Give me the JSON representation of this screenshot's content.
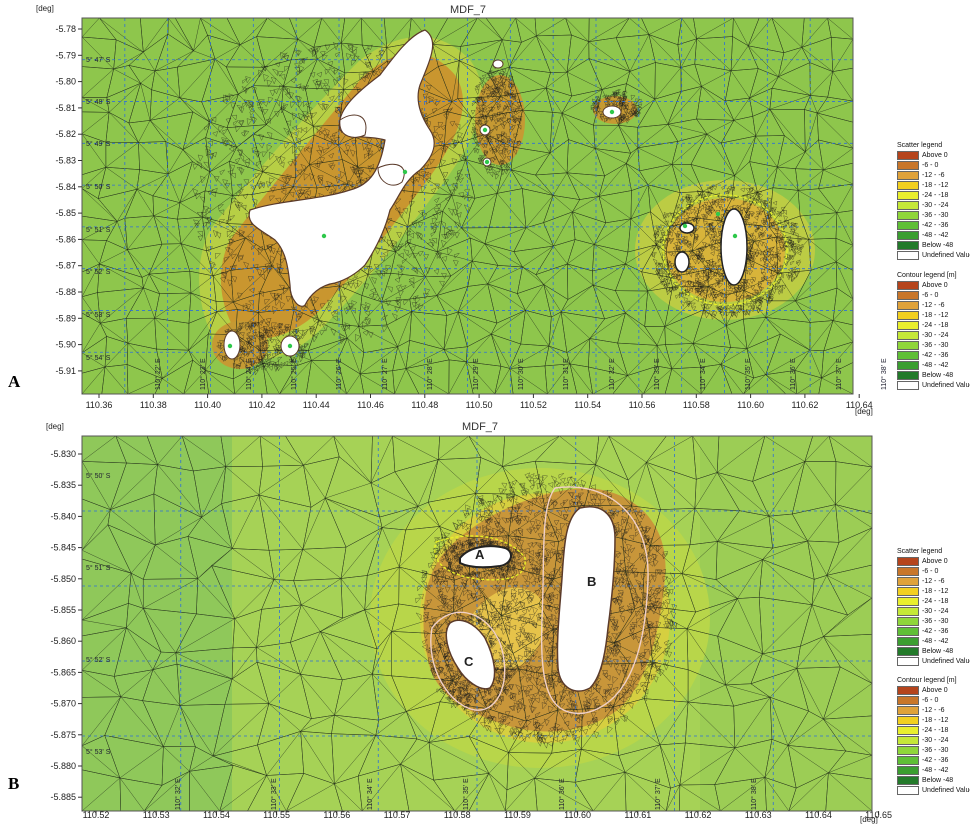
{
  "panels": [
    {
      "letter": "A",
      "title": "MDF_7",
      "y_unit": "[deg]",
      "x_unit": "[deg]",
      "x_ticks": [
        "110.36",
        "110.38",
        "110.40",
        "110.42",
        "110.44",
        "110.46",
        "110.48",
        "110.50",
        "110.52",
        "110.54",
        "110.56",
        "110.58",
        "110.60",
        "110.62",
        "110.64"
      ],
      "y_ticks": [
        "-5.78",
        "-5.79",
        "-5.80",
        "-5.81",
        "-5.82",
        "-5.83",
        "-5.84",
        "-5.85",
        "-5.86",
        "-5.87",
        "-5.88",
        "-5.89",
        "-5.90",
        "-5.91"
      ],
      "lat_labels": [
        "5° 47' S",
        "5° 48' S",
        "5° 49' S",
        "5° 50' S",
        "5° 51' S",
        "5° 52' S",
        "5° 53' S",
        "5° 54' S"
      ],
      "lon_labels": [
        "110° 22' E",
        "110° 23' E",
        "110° 24' E",
        "110° 25' E",
        "110° 26' E",
        "110° 27' E",
        "110° 28' E",
        "110° 29' E",
        "110° 30' E",
        "110° 31' E",
        "110° 32' E",
        "110° 33' E",
        "110° 34' E",
        "110° 35' E",
        "110° 36' E",
        "110° 37' E",
        "110° 38' E"
      ]
    },
    {
      "letter": "B",
      "title": "MDF_7",
      "y_unit": "[deg]",
      "x_unit": "[deg]",
      "x_ticks": [
        "110.52",
        "110.53",
        "110.54",
        "110.55",
        "110.56",
        "110.57",
        "110.58",
        "110.59",
        "110.60",
        "110.61",
        "110.62",
        "110.63",
        "110.64",
        "110.65"
      ],
      "y_ticks": [
        "-5.830",
        "-5.835",
        "-5.840",
        "-5.845",
        "-5.850",
        "-5.855",
        "-5.860",
        "-5.865",
        "-5.870",
        "-5.875",
        "-5.880",
        "-5.885"
      ],
      "lat_labels": [
        "5° 50' S",
        "5° 51' S",
        "5° 52' S",
        "5° 53' S"
      ],
      "lon_labels": [
        "110° 32' E",
        "110° 33' E",
        "110° 34' E",
        "110° 35' E",
        "110° 36' E",
        "110° 37' E",
        "110° 38' E"
      ],
      "island_labels": [
        "A",
        "B",
        "C"
      ]
    }
  ],
  "legends": {
    "scatter_title": "Scatter legend",
    "contour_title": "Contour legend [m]",
    "entries": [
      {
        "label": "Above   0",
        "color": "#b5441c"
      },
      {
        "label": "-6 -   0",
        "color": "#c8762a"
      },
      {
        "label": "-12 -  -6",
        "color": "#dfa23a"
      },
      {
        "label": "-18 - -12",
        "color": "#f2d020"
      },
      {
        "label": "-24 - -18",
        "color": "#e9ef2e"
      },
      {
        "label": "-30 - -24",
        "color": "#c5e838"
      },
      {
        "label": "-36 - -30",
        "color": "#8fd63a"
      },
      {
        "label": "-42 - -36",
        "color": "#5fbf36"
      },
      {
        "label": "-48 - -42",
        "color": "#3b9e30"
      },
      {
        "label": "Below  -48",
        "color": "#237a2a"
      },
      {
        "label": "Undefined Value",
        "color": "#ffffff"
      }
    ]
  }
}
